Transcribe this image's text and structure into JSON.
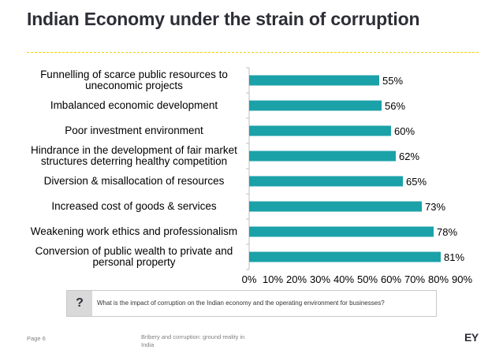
{
  "title": "Indian Economy under the strain of corruption",
  "chart_data": {
    "type": "bar",
    "orientation": "horizontal",
    "categories": [
      [
        "Funnelling of scarce public resources to",
        "uneconomic projects"
      ],
      [
        "Imbalanced economic development"
      ],
      [
        "Poor investment environment"
      ],
      [
        "Hindrance in the development of fair market",
        "structures deterring healthy competition"
      ],
      [
        "Diversion & misallocation of resources"
      ],
      [
        "Increased cost of goods & services"
      ],
      [
        "Weakening work ethics and professionalism"
      ],
      [
        "Conversion of public wealth to private and",
        "personal property"
      ]
    ],
    "values": [
      55,
      56,
      60,
      62,
      65,
      73,
      78,
      81
    ],
    "value_labels": [
      "55%",
      "56%",
      "60%",
      "62%",
      "65%",
      "73%",
      "78%",
      "81%"
    ],
    "xlim": [
      0,
      90
    ],
    "ticks": [
      0,
      10,
      20,
      30,
      40,
      50,
      60,
      70,
      80,
      90
    ],
    "tick_labels": [
      "0%",
      "10%",
      "20%",
      "30%",
      "40%",
      "50%",
      "60%",
      "70%",
      "80%",
      "90%"
    ],
    "bar_color": "#1ba1a8",
    "grid": false,
    "xlabel": "",
    "ylabel": ""
  },
  "question": {
    "mark": "?",
    "text": "What is the impact of corruption on the Indian economy and the operating environment for businesses?"
  },
  "footer": {
    "page": "Page 6",
    "doc_title": "Bribery and corruption: ground reality in India",
    "logo": "EY"
  },
  "colors": {
    "accent_yellow": "#f2d200",
    "title": "#2e2e38"
  }
}
